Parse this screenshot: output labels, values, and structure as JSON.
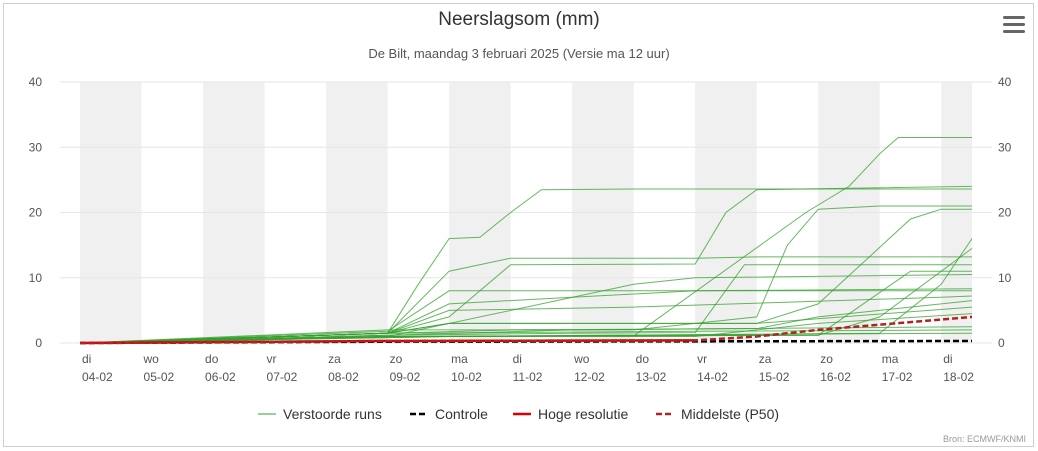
{
  "title": "Neerslagsom (mm)",
  "subtitle": "De Bilt, maandag 3 februari 2025 (Versie ma 12 uur)",
  "credits": "Bron: ECMWF/KNMI",
  "menu_icon": "hamburger-menu-icon",
  "colors": {
    "perturbed": "#33a02c",
    "control": "#000000",
    "high_res": "#dd0000",
    "median": "#b22222",
    "weekend_band": "#f0f0f0",
    "grid": "#e6e6e6"
  },
  "chart_data": {
    "type": "line",
    "title": "Neerslagsom (mm)",
    "subtitle": "De Bilt, maandag 3 februari 2025 (Versie ma 12 uur)",
    "xlabel": "",
    "ylabel": "",
    "ylim": [
      0,
      40
    ],
    "xlim": [
      0,
      14.5
    ],
    "yticks": [
      0,
      10,
      20,
      30,
      40
    ],
    "grid": true,
    "legend_position": "bottom-center",
    "x_ticks": [
      {
        "day": "di",
        "date": "04-02"
      },
      {
        "day": "wo",
        "date": "05-02"
      },
      {
        "day": "do",
        "date": "06-02"
      },
      {
        "day": "vr",
        "date": "07-02"
      },
      {
        "day": "za",
        "date": "08-02"
      },
      {
        "day": "zo",
        "date": "09-02"
      },
      {
        "day": "ma",
        "date": "10-02"
      },
      {
        "day": "di",
        "date": "11-02"
      },
      {
        "day": "wo",
        "date": "12-02"
      },
      {
        "day": "do",
        "date": "13-02"
      },
      {
        "day": "vr",
        "date": "14-02"
      },
      {
        "day": "za",
        "date": "15-02"
      },
      {
        "day": "zo",
        "date": "16-02"
      },
      {
        "day": "ma",
        "date": "17-02"
      },
      {
        "day": "di",
        "date": "18-02"
      }
    ],
    "series": [
      {
        "name": "Verstoorde runs",
        "style": "thin-solid",
        "color": "#33a02c",
        "members": [
          [
            [
              0,
              0
            ],
            [
              5,
              1.5
            ],
            [
              5.5,
              9
            ],
            [
              6,
              16
            ],
            [
              6.5,
              16.2
            ],
            [
              7,
              20
            ],
            [
              7.5,
              23.5
            ],
            [
              9,
              23.6
            ],
            [
              14.5,
              23.6
            ]
          ],
          [
            [
              0,
              0
            ],
            [
              5,
              1.5
            ],
            [
              6,
              4
            ],
            [
              7,
              12
            ],
            [
              10,
              12.1
            ],
            [
              10.5,
              20
            ],
            [
              11,
              23.5
            ],
            [
              14.5,
              24
            ]
          ],
          [
            [
              0,
              0
            ],
            [
              5,
              1
            ],
            [
              9,
              1.1
            ],
            [
              11.8,
              20
            ],
            [
              12.5,
              24
            ],
            [
              13,
              29
            ],
            [
              13.3,
              31.5
            ],
            [
              14.5,
              31.5
            ]
          ],
          [
            [
              0,
              0
            ],
            [
              5,
              2
            ],
            [
              9,
              2
            ],
            [
              11,
              4
            ],
            [
              11.5,
              15
            ],
            [
              12,
              20.5
            ],
            [
              13,
              21
            ],
            [
              14.5,
              21
            ]
          ],
          [
            [
              0,
              0
            ],
            [
              5,
              1.5
            ],
            [
              6,
              3
            ],
            [
              11,
              3
            ],
            [
              12,
              6
            ],
            [
              13.5,
              19
            ],
            [
              14,
              20.5
            ],
            [
              14.5,
              20.5
            ]
          ],
          [
            [
              0,
              0
            ],
            [
              5,
              1.5
            ],
            [
              6,
              11
            ],
            [
              7,
              13
            ],
            [
              10,
              13
            ],
            [
              11,
              13.2
            ],
            [
              14.5,
              13.2
            ]
          ],
          [
            [
              0,
              0
            ],
            [
              5,
              1.2
            ],
            [
              8,
              1.5
            ],
            [
              10,
              1.6
            ],
            [
              10.8,
              12
            ],
            [
              14.5,
              12
            ]
          ],
          [
            [
              0,
              0
            ],
            [
              6,
              1
            ],
            [
              13,
              1.5
            ],
            [
              14,
              9
            ],
            [
              14.5,
              16
            ]
          ],
          [
            [
              0,
              0
            ],
            [
              5,
              1.5
            ],
            [
              6,
              6
            ],
            [
              8,
              7
            ],
            [
              10,
              8
            ],
            [
              14.5,
              8.3
            ]
          ],
          [
            [
              0,
              0
            ],
            [
              5,
              1.5
            ],
            [
              6,
              5
            ],
            [
              9,
              5.5
            ],
            [
              14,
              7
            ],
            [
              14.5,
              7.2
            ]
          ],
          [
            [
              0,
              0
            ],
            [
              6,
              1
            ],
            [
              12,
              1.2
            ],
            [
              13.5,
              11
            ],
            [
              14.5,
              11
            ]
          ],
          [
            [
              0,
              0
            ],
            [
              5,
              1
            ],
            [
              9,
              9
            ],
            [
              10,
              10
            ],
            [
              14.5,
              10.5
            ]
          ],
          [
            [
              0,
              0
            ],
            [
              5,
              1.5
            ],
            [
              7,
              2
            ],
            [
              11,
              2.2
            ],
            [
              12,
              4
            ],
            [
              14.5,
              6.5
            ]
          ],
          [
            [
              0,
              0
            ],
            [
              5,
              1.8
            ],
            [
              6,
              8
            ],
            [
              14.5,
              8
            ]
          ],
          [
            [
              0,
              0
            ],
            [
              5,
              1.5
            ],
            [
              6,
              3
            ],
            [
              11,
              3
            ],
            [
              14.5,
              5.5
            ]
          ],
          [
            [
              0,
              0
            ],
            [
              5,
              1
            ],
            [
              10,
              1
            ],
            [
              12,
              3
            ],
            [
              14.5,
              4.5
            ]
          ],
          [
            [
              0,
              0
            ],
            [
              5,
              1.2
            ],
            [
              8,
              2
            ],
            [
              14.5,
              2.5
            ]
          ],
          [
            [
              0,
              0
            ],
            [
              5,
              1
            ],
            [
              12,
              1.2
            ],
            [
              13,
              4
            ],
            [
              14.5,
              14.5
            ]
          ],
          [
            [
              0,
              0
            ],
            [
              5,
              1
            ],
            [
              14.5,
              1.5
            ]
          ],
          [
            [
              0,
              0
            ],
            [
              5,
              1.5
            ],
            [
              10,
              1.8
            ],
            [
              14.5,
              2
            ]
          ]
        ]
      },
      {
        "name": "Controle",
        "style": "dashed",
        "color": "#000000",
        "values": [
          [
            0,
            0
          ],
          [
            5,
            0.2
          ],
          [
            14.5,
            0.3
          ]
        ]
      },
      {
        "name": "Hoge resolutie",
        "style": "solid",
        "color": "#dd0000",
        "values": [
          [
            0,
            0
          ],
          [
            5,
            0.3
          ],
          [
            10,
            0.4
          ]
        ]
      },
      {
        "name": "Middelste (P50)",
        "style": "dashed",
        "color": "#b22222",
        "values": [
          [
            0,
            0
          ],
          [
            5,
            0.3
          ],
          [
            10,
            0.4
          ],
          [
            11,
            1
          ],
          [
            12,
            2
          ],
          [
            13,
            2.8
          ],
          [
            14.5,
            4
          ]
        ]
      }
    ]
  }
}
